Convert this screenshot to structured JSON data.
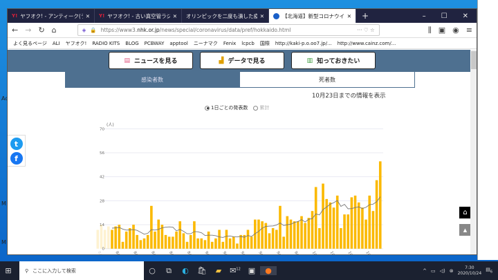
{
  "desktop": {
    "icons": [
      "Ac",
      "M",
      "M"
    ]
  },
  "browser": {
    "tabs": [
      {
        "label": "ヤフオク! - アンティーク(ラジオ オーデ",
        "active": false
      },
      {
        "label": "ヤフオク! - 古い真空管ラジオ【ジャ",
        "active": false
      },
      {
        "label": "オリンピックを二度も潰した疫病神日本",
        "active": false
      },
      {
        "label": "【北海道】新型コロナウイルス感染",
        "active": true
      }
    ],
    "url_prefix": "https://www3.",
    "url_domain": "nhk.or.jp",
    "url_path": "/news/special/coronavirus/data/pref/hokkaido.html",
    "bookmarks": [
      "よく見るページ",
      "ALI",
      "ヤフオク!",
      "RADIO KITS",
      "BLOG",
      "PCBWAY",
      "apptool",
      "ニーナマク",
      "Fenix",
      "lcpcb",
      "国際",
      "http://kaki-p.o.oo7.jp/...",
      "http://www.cainz.com/..."
    ]
  },
  "page": {
    "nav_buttons": [
      "ニュースを見る",
      "データで見る",
      "知っておきたい"
    ],
    "tabs": [
      "感染者数",
      "死者数"
    ],
    "date_note": "10月23日までの情報を表示",
    "radio": {
      "options": [
        "1日ごとの発表数",
        "累計"
      ],
      "selected": 0
    }
  },
  "chart_data": {
    "type": "bar",
    "ylabel": "(人)",
    "ylim": [
      0,
      70
    ],
    "yticks": [
      0,
      14,
      28,
      42,
      56,
      70
    ],
    "grid": true,
    "bar_color": "#fbb900",
    "line_color": "#777777",
    "faded_until": "8/8",
    "categories": [
      "8/5",
      "8/6",
      "8/7",
      "8/8",
      "8/9",
      "8/10",
      "8/11",
      "8/12",
      "8/13",
      "8/14",
      "8/15",
      "8/16",
      "8/17",
      "8/18",
      "8/19",
      "8/20",
      "8/21",
      "8/22",
      "8/23",
      "8/24",
      "8/25",
      "8/26",
      "8/27",
      "8/28",
      "8/29",
      "8/30",
      "8/31",
      "9/1",
      "9/2",
      "9/3",
      "9/4",
      "9/5",
      "9/6",
      "9/7",
      "9/8",
      "9/9",
      "9/10",
      "9/11",
      "9/12",
      "9/13",
      "9/14",
      "9/15",
      "9/16",
      "9/17",
      "9/18",
      "9/19",
      "9/20",
      "9/21",
      "9/22",
      "9/23",
      "9/24",
      "9/25",
      "9/26",
      "9/27",
      "9/28",
      "9/29",
      "9/30",
      "10/1",
      "10/2",
      "10/3",
      "10/4",
      "10/5",
      "10/6",
      "10/7",
      "10/8",
      "10/9",
      "10/10",
      "10/11",
      "10/12",
      "10/13",
      "10/14",
      "10/15",
      "10/16",
      "10/17",
      "10/18",
      "10/19",
      "10/20",
      "10/21",
      "10/22",
      "10/23"
    ],
    "tick_labels": [
      "8/5",
      "8/10",
      "8/15",
      "8/20",
      "8/25",
      "8/30",
      "9/4",
      "9/9",
      "9/14",
      "9/19",
      "9/24",
      "9/29",
      "10/4",
      "10/9",
      "10/14",
      "10/19"
    ],
    "values": [
      11,
      14,
      11,
      13,
      11,
      13,
      14,
      4,
      10,
      12,
      14,
      8,
      5,
      6,
      8,
      25,
      10,
      17,
      14,
      8,
      7,
      7,
      10,
      16,
      9,
      4,
      8,
      16,
      6,
      6,
      5,
      10,
      4,
      6,
      11,
      4,
      11,
      6,
      7,
      3,
      8,
      8,
      11,
      7,
      17,
      17,
      16,
      15,
      9,
      12,
      11,
      25,
      7,
      19,
      17,
      16,
      16,
      19,
      15,
      18,
      22,
      36,
      12,
      38,
      29,
      27,
      24,
      31,
      12,
      20,
      20,
      30,
      31,
      27,
      24,
      17,
      31,
      22,
      40,
      51
    ],
    "line": "7-day average"
  },
  "taskbar": {
    "search_placeholder": "ここに入力して検索",
    "time": "7:30",
    "date": "2020/10/24",
    "mail_badge": "12",
    "notif_count": "6"
  }
}
